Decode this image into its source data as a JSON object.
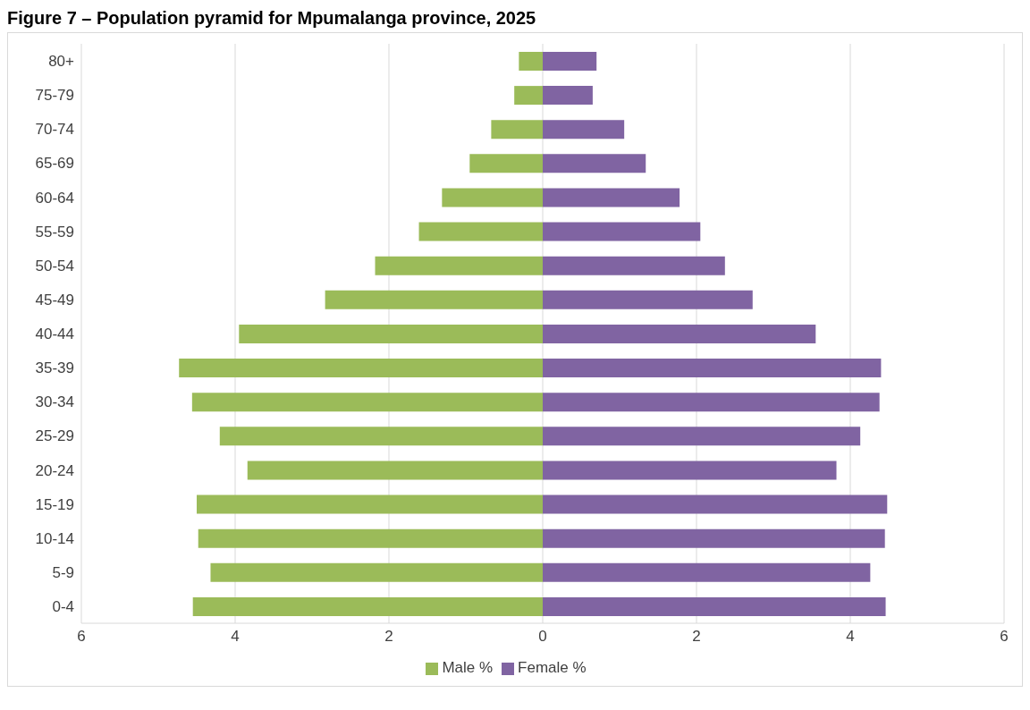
{
  "chart_data": {
    "type": "bar",
    "orientation": "horizontal",
    "stacked": true,
    "title": "Figure 7 – Population pyramid for Mpumalanga province, 2025",
    "categories": [
      "80+",
      "75-79",
      "70-74",
      "65-69",
      "60-64",
      "55-59",
      "50-54",
      "45-49",
      "40-44",
      "35-39",
      "30-34",
      "25-29",
      "20-24",
      "15-19",
      "10-14",
      "5-9",
      "0-4"
    ],
    "series": [
      {
        "name": "Male %",
        "color": "#9bbb59",
        "values": [
          -0.31,
          -0.37,
          -0.67,
          -0.95,
          -1.31,
          -1.61,
          -2.18,
          -2.83,
          -3.95,
          -4.73,
          -4.56,
          -4.2,
          -3.84,
          -4.5,
          -4.48,
          -4.32,
          -4.55
        ]
      },
      {
        "name": "Female %",
        "color": "#8064a2",
        "values": [
          0.7,
          0.65,
          1.06,
          1.34,
          1.78,
          2.05,
          2.37,
          2.73,
          3.55,
          4.4,
          4.38,
          4.13,
          3.82,
          4.48,
          4.45,
          4.26,
          4.46
        ]
      }
    ],
    "xlim": [
      -6,
      6
    ],
    "xticks": [
      {
        "value": -6,
        "label": "6"
      },
      {
        "value": -4,
        "label": "4"
      },
      {
        "value": -2,
        "label": "2"
      },
      0,
      2,
      4,
      6
    ],
    "grid": "x",
    "legend": "bottom"
  }
}
